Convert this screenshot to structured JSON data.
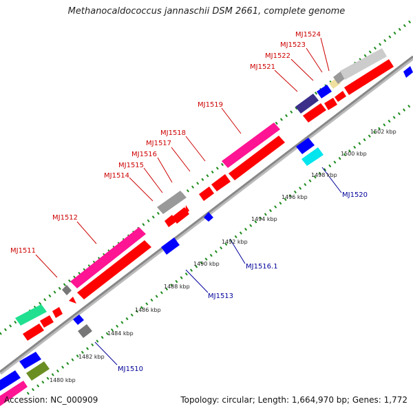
{
  "title": "Methanocaldococcus jannaschii DSM 2661, complete genome",
  "footer": {
    "accession": "Accession: NC_000909",
    "summary": "Topology: circular; Length: 1,664,970 bp; Genes: 1,772"
  },
  "colors": {
    "forward_cds": "#ff0000",
    "reverse_cds": "#0000ff",
    "rna_pink": "#ff1493",
    "gray": "#999999",
    "label_forward": "#cc0000",
    "label_reverse": "#000099",
    "tick_dots": "#1a8a1a"
  },
  "scale_labels": [
    "1480 kbp",
    "1482 kbp",
    "1484 kbp",
    "1486 kbp",
    "1488 kbp",
    "1490 kbp",
    "1492 kbp",
    "1494 kbp",
    "1496 kbp",
    "1498 kbp",
    "1500 kbp",
    "1502 kbp"
  ],
  "forward_labels": [
    "MJ1511",
    "MJ1512",
    "MJ1514",
    "MJ1515",
    "MJ1516",
    "MJ1517",
    "MJ1518",
    "MJ1519",
    "MJ1521",
    "MJ1522",
    "MJ1523",
    "MJ1524"
  ],
  "reverse_labels": [
    "MJ1510",
    "MJ1513",
    "MJ1516.1",
    "MJ1520"
  ]
}
